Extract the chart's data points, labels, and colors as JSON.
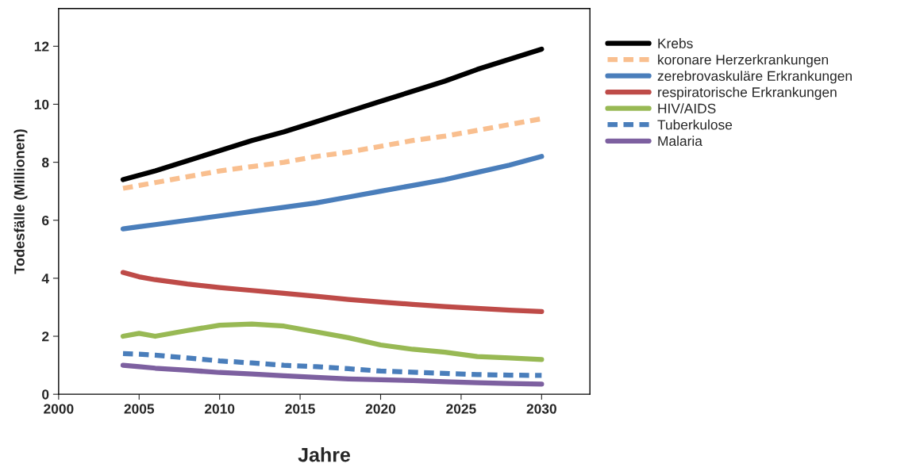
{
  "chart_data": {
    "type": "line",
    "xlabel": "Jahre",
    "ylabel": "Todesfälle (Millionen)",
    "x": [
      2004,
      2005,
      2006,
      2008,
      2010,
      2012,
      2014,
      2016,
      2018,
      2020,
      2022,
      2024,
      2026,
      2028,
      2030
    ],
    "series": [
      {
        "name": "Krebs",
        "color": "#000000",
        "line_style": "solid",
        "values": [
          7.4,
          7.55,
          7.7,
          8.05,
          8.4,
          8.75,
          9.05,
          9.4,
          9.75,
          10.1,
          10.45,
          10.8,
          11.2,
          11.55,
          11.9
        ]
      },
      {
        "name": "koronare Herzerkrankungen",
        "color": "#f9bf8f",
        "line_style": "dashed",
        "values": [
          7.1,
          7.2,
          7.3,
          7.5,
          7.7,
          7.85,
          8.0,
          8.2,
          8.35,
          8.55,
          8.75,
          8.9,
          9.1,
          9.3,
          9.5
        ]
      },
      {
        "name": "zerebrovaskuläre Erkrankungen",
        "color": "#4a7ebb",
        "line_style": "solid",
        "values": [
          5.7,
          5.78,
          5.85,
          6.0,
          6.15,
          6.3,
          6.45,
          6.6,
          6.8,
          7.0,
          7.2,
          7.4,
          7.65,
          7.9,
          8.2
        ]
      },
      {
        "name": "respiratorische Erkrankungen",
        "color": "#be4b48",
        "line_style": "solid",
        "values": [
          4.2,
          4.05,
          3.95,
          3.8,
          3.68,
          3.58,
          3.48,
          3.38,
          3.27,
          3.18,
          3.1,
          3.02,
          2.96,
          2.9,
          2.85
        ]
      },
      {
        "name": "HIV/AIDS",
        "color": "#98b954",
        "line_style": "solid",
        "values": [
          2.0,
          2.1,
          2.0,
          2.2,
          2.38,
          2.42,
          2.35,
          2.15,
          1.95,
          1.7,
          1.55,
          1.45,
          1.3,
          1.25,
          1.2
        ]
      },
      {
        "name": "Tuberkulose",
        "color": "#4a7ebb",
        "line_style": "dashed",
        "values": [
          1.4,
          1.38,
          1.35,
          1.25,
          1.15,
          1.08,
          1.0,
          0.95,
          0.88,
          0.8,
          0.76,
          0.72,
          0.68,
          0.66,
          0.65
        ]
      },
      {
        "name": "Malaria",
        "color": "#7d60a0",
        "line_style": "solid",
        "values": [
          1.0,
          0.95,
          0.9,
          0.83,
          0.75,
          0.7,
          0.64,
          0.58,
          0.53,
          0.5,
          0.47,
          0.43,
          0.4,
          0.37,
          0.35
        ]
      }
    ],
    "xlim": [
      2000,
      2033
    ],
    "xticks": [
      2000,
      2005,
      2010,
      2015,
      2020,
      2025,
      2030
    ],
    "ylim": [
      0,
      13.3
    ],
    "yticks": [
      0,
      2,
      4,
      6,
      8,
      10,
      12
    ],
    "grid": false,
    "legend": "right",
    "marker": "none"
  }
}
